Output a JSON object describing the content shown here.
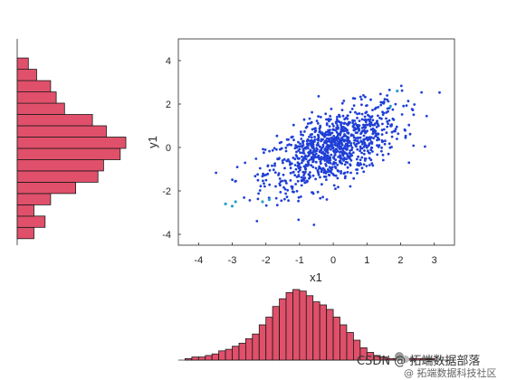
{
  "chart_data": [
    {
      "type": "scatter",
      "title": "",
      "xlabel": "x1",
      "ylabel": "y1",
      "xlim": [
        -4.6,
        3.6
      ],
      "ylim": [
        -4.5,
        5.0
      ],
      "xticks": [
        -4,
        -3,
        -2,
        -1,
        0,
        1,
        2,
        3
      ],
      "yticks": [
        -4,
        -2,
        0,
        2,
        4
      ],
      "grid": false,
      "point_color": "#1f3fd6",
      "highlight_color": "#2aa0c8",
      "n_points": 1000,
      "correlation": 0.6,
      "highlighted_points": [
        {
          "x": -3.0,
          "y": -2.7
        },
        {
          "x": -2.9,
          "y": -2.5
        },
        {
          "x": -3.2,
          "y": -2.6
        },
        {
          "x": -1.9,
          "y": -2.4
        },
        {
          "x": -2.1,
          "y": -2.5
        },
        {
          "x": 1.7,
          "y": 1.9
        },
        {
          "x": 1.9,
          "y": 2.6
        }
      ]
    },
    {
      "type": "bar",
      "orientation": "vertical",
      "title": "",
      "xlabel": "",
      "ylabel": "",
      "xlim": [
        -4.6,
        3.6
      ],
      "bin_width": 0.2,
      "bar_color": "#e0506a",
      "edge_color": "#1a1a1a",
      "bin_edges_start": -4.4,
      "values": [
        1,
        2,
        2,
        3,
        4,
        6,
        7,
        9,
        11,
        14,
        17,
        23,
        28,
        35,
        40,
        44,
        46,
        45,
        42,
        38,
        36,
        33,
        28,
        23,
        18,
        13,
        8,
        5,
        3,
        2,
        1,
        1,
        1,
        1,
        1,
        1,
        1
      ]
    },
    {
      "type": "bar",
      "orientation": "horizontal",
      "title": "",
      "xlabel": "",
      "ylabel": "",
      "ylim": [
        -4.5,
        5.0
      ],
      "bin_width": 0.52,
      "bar_color": "#e0506a",
      "edge_color": "#1a1a1a",
      "bin_edges_start": -4.2,
      "values": [
        6,
        10,
        6,
        12,
        21,
        29,
        31,
        37,
        39,
        32,
        27,
        17,
        14,
        12,
        7,
        4
      ]
    }
  ],
  "watermark": {
    "line1": "CSDN @ 拓端数据部落",
    "line2": "@ 拓端数据科技社区"
  }
}
